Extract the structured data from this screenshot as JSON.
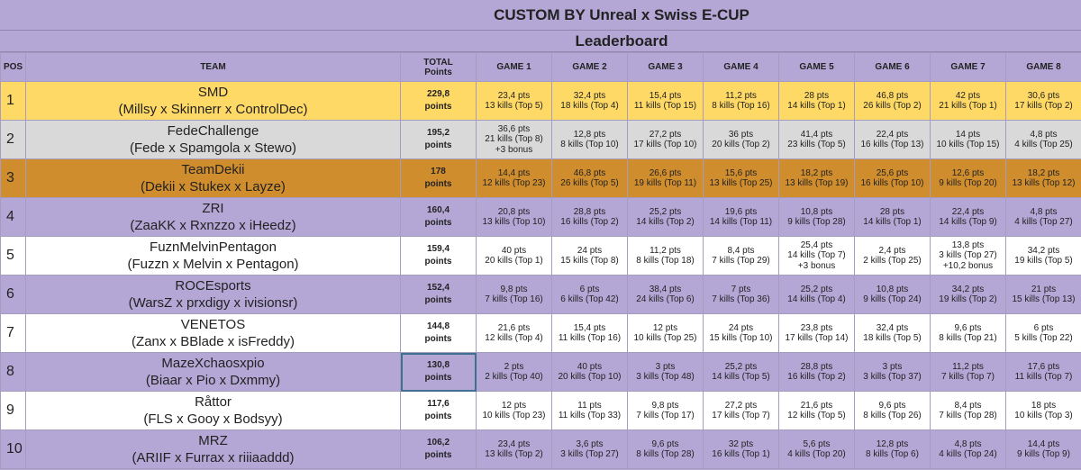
{
  "title": "CUSTOM BY Unreal x Swiss E-CUP",
  "subtitle": "Leaderboard",
  "headers": {
    "pos": "POS",
    "team": "TEAM",
    "total_line1": "TOTAL",
    "total_line2": "Points",
    "games": [
      "GAME 1",
      "GAME 2",
      "GAME 3",
      "GAME 4",
      "GAME 5",
      "GAME 6",
      "GAME 7",
      "GAME 8"
    ]
  },
  "colors": {
    "gold": "#ffd966",
    "silver": "#d9d9d9",
    "bronze": "#d08d2e",
    "purple": "#b4a7d6",
    "white": "#ffffff",
    "selection": "#3f6f91"
  },
  "rows": [
    {
      "pos": "1",
      "team": "SMD",
      "members": "(Millsy x Skinnerr x ControlDec)",
      "total": "229,8",
      "total_unit": "points",
      "style": "gold",
      "games": [
        [
          "23,4 pts",
          "13 kills (Top 5)"
        ],
        [
          "32,4 pts",
          "18 kills (Top 4)"
        ],
        [
          "15,4 pts",
          "11 kills (Top 15)"
        ],
        [
          "11,2 pts",
          "8 kills (Top 16)"
        ],
        [
          "28 pts",
          "14 kills (Top 1)"
        ],
        [
          "46,8 pts",
          "26 kills (Top 2)"
        ],
        [
          "42 pts",
          "21 kills (Top 1)"
        ],
        [
          "30,6 pts",
          "17 kills (Top 2)"
        ]
      ]
    },
    {
      "pos": "2",
      "team": "FedeChallenge",
      "members": "(Fede x Spamgola x Stewo)",
      "total": "195,2",
      "total_unit": "points",
      "style": "silver",
      "games": [
        [
          "36,6 pts",
          "21 kills (Top 8)",
          "+3 bonus"
        ],
        [
          "12,8 pts",
          "8 kills (Top 10)"
        ],
        [
          "27,2 pts",
          "17 kills (Top 10)"
        ],
        [
          "36 pts",
          "20 kills (Top 2)"
        ],
        [
          "41,4 pts",
          "23 kills (Top 5)"
        ],
        [
          "22,4 pts",
          "16 kills (Top 13)"
        ],
        [
          "14 pts",
          "10 kills (Top 15)"
        ],
        [
          "4,8 pts",
          "4 kills (Top 25)"
        ]
      ]
    },
    {
      "pos": "3",
      "team": "TeamDekii",
      "members": "(Dekii x Stukex x Layze)",
      "total": "178",
      "total_unit": "points",
      "style": "bronze",
      "games": [
        [
          "14,4 pts",
          "12 kills (Top 23)"
        ],
        [
          "46,8 pts",
          "26 kills (Top 5)"
        ],
        [
          "26,6 pts",
          "19 kills (Top 11)"
        ],
        [
          "15,6 pts",
          "13 kills (Top 25)"
        ],
        [
          "18,2 pts",
          "13 kills (Top 19)"
        ],
        [
          "25,6 pts",
          "16 kills (Top 10)"
        ],
        [
          "12,6 pts",
          "9 kills (Top 20)"
        ],
        [
          "18,2 pts",
          "13 kills (Top 12)"
        ]
      ]
    },
    {
      "pos": "4",
      "team": "ZRI",
      "members": "(ZaaKK x Rxnzzo x iHeedz)",
      "total": "160,4",
      "total_unit": "points",
      "style": "purple",
      "games": [
        [
          "20,8 pts",
          "13 kills (Top 10)"
        ],
        [
          "28,8 pts",
          "16 kills (Top 2)"
        ],
        [
          "25,2 pts",
          "14 kills (Top 2)"
        ],
        [
          "19,6 pts",
          "14 kills (Top 11)"
        ],
        [
          "10,8 pts",
          "9 kills (Top 28)"
        ],
        [
          "28 pts",
          "14 kills (Top 1)"
        ],
        [
          "22,4 pts",
          "14 kills (Top 9)"
        ],
        [
          "4,8 pts",
          "4 kills (Top 27)"
        ]
      ]
    },
    {
      "pos": "5",
      "team": "FuznMelvinPentagon",
      "members": "(Fuzzn x Melvin x Pentagon)",
      "total": "159,4",
      "total_unit": "points",
      "style": "white",
      "games": [
        [
          "40 pts",
          "20 kills (Top 1)"
        ],
        [
          "24 pts",
          "15 kills (Top 8)"
        ],
        [
          "11,2 pts",
          "8 kills (Top 18)"
        ],
        [
          "8,4 pts",
          "7 kills (Top 29)"
        ],
        [
          "25,4 pts",
          "14 kills (Top 7)",
          "+3 bonus"
        ],
        [
          "2,4 pts",
          "2 kills (Top 25)"
        ],
        [
          "13,8 pts",
          "3 kills (Top 27)",
          "+10,2 bonus"
        ],
        [
          "34,2 pts",
          "19 kills (Top 5)"
        ]
      ]
    },
    {
      "pos": "6",
      "team": "ROCEsports",
      "members": "(WarsZ x prxdigy x ivisionsr)",
      "total": "152,4",
      "total_unit": "points",
      "style": "purple",
      "games": [
        [
          "9,8 pts",
          "7 kills (Top 16)"
        ],
        [
          "6 pts",
          "6 kills (Top 42)"
        ],
        [
          "38,4 pts",
          "24 kills (Top 6)"
        ],
        [
          "7 pts",
          "7 kills (Top 36)"
        ],
        [
          "25,2 pts",
          "14 kills (Top 4)"
        ],
        [
          "10,8 pts",
          "9 kills (Top 24)"
        ],
        [
          "34,2 pts",
          "19 kills (Top 2)"
        ],
        [
          "21 pts",
          "15 kills (Top 13)"
        ]
      ]
    },
    {
      "pos": "7",
      "team": "VENETOS",
      "members": "(Zanx x BBlade x isFreddy)",
      "total": "144,8",
      "total_unit": "points",
      "style": "white",
      "games": [
        [
          "21,6 pts",
          "12 kills (Top 4)"
        ],
        [
          "15,4 pts",
          "11 kills (Top 16)"
        ],
        [
          "12 pts",
          "10 kills (Top 25)"
        ],
        [
          "24 pts",
          "15 kills (Top 10)"
        ],
        [
          "23,8 pts",
          "17 kills (Top 14)"
        ],
        [
          "32,4 pts",
          "18 kills (Top 5)"
        ],
        [
          "9,6 pts",
          "8 kills (Top 21)"
        ],
        [
          "6 pts",
          "5 kills (Top 22)"
        ]
      ]
    },
    {
      "pos": "8",
      "team": "MazeXchaosxpio",
      "members": "(Biaar x Pio x Dxmmy)",
      "total": "130,8",
      "total_unit": "points",
      "style": "purple",
      "selected": true,
      "games": [
        [
          "2 pts",
          "2 kills (Top 40)"
        ],
        [
          "40 pts",
          "20 kills (Top 10)"
        ],
        [
          "3 pts",
          "3 kills (Top 48)"
        ],
        [
          "25,2 pts",
          "14 kills (Top 5)"
        ],
        [
          "28,8 pts",
          "16 kills (Top 2)"
        ],
        [
          "3 pts",
          "3 kills (Top 37)"
        ],
        [
          "11,2 pts",
          "7 kills (Top 7)"
        ],
        [
          "17,6 pts",
          "11 kills (Top 7)"
        ]
      ]
    },
    {
      "pos": "9",
      "team": "Råttor",
      "members": "(FLS x Gooy x Bodsyy)",
      "total": "117,6",
      "total_unit": "points",
      "style": "white",
      "games": [
        [
          "12 pts",
          "10 kills (Top 23)"
        ],
        [
          "11 pts",
          "11 kills (Top 33)"
        ],
        [
          "9,8 pts",
          "7 kills (Top 17)"
        ],
        [
          "27,2 pts",
          "17 kills (Top 7)"
        ],
        [
          "21,6 pts",
          "12 kills (Top 5)"
        ],
        [
          "9,6 pts",
          "8 kills (Top 26)"
        ],
        [
          "8,4 pts",
          "7 kills (Top 28)"
        ],
        [
          "18 pts",
          "10 kills (Top 3)"
        ]
      ]
    },
    {
      "pos": "10",
      "team": "MRZ",
      "members": "(ARIIF x Furrax x riiiaaddd)",
      "total": "106,2",
      "total_unit": "points",
      "style": "purple",
      "games": [
        [
          "23,4 pts",
          "13 kills (Top 2)"
        ],
        [
          "3,6 pts",
          "3 kills (Top 27)"
        ],
        [
          "9,6 pts",
          "8 kills (Top 28)"
        ],
        [
          "32 pts",
          "16 kills (Top 1)"
        ],
        [
          "5,6 pts",
          "4 kills (Top 20)"
        ],
        [
          "12,8 pts",
          "8 kills (Top 6)"
        ],
        [
          "4,8 pts",
          "4 kills (Top 24)"
        ],
        [
          "14,4 pts",
          "9 kills (Top 9)"
        ]
      ]
    }
  ]
}
